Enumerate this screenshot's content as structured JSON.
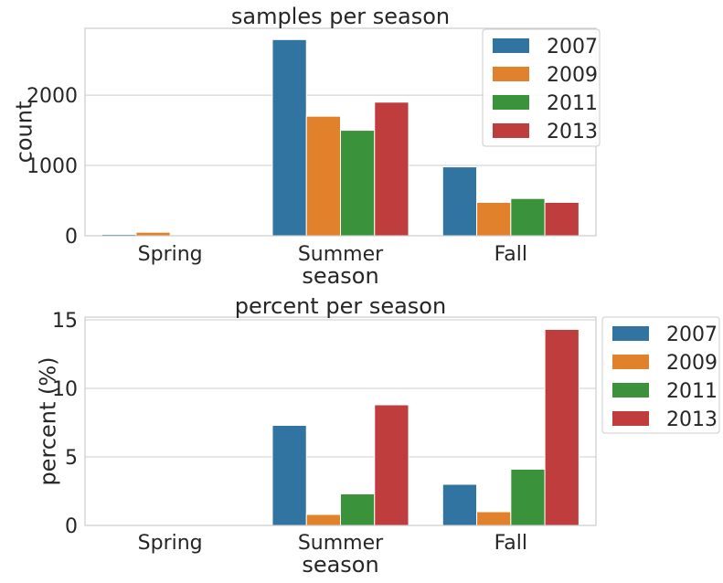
{
  "colors": {
    "2007": "#3274a1",
    "2009": "#e1812c",
    "2011": "#3a923a",
    "2013": "#c03d3e"
  },
  "chart_data": [
    {
      "type": "bar",
      "title": "samples per season",
      "xlabel": "season",
      "ylabel": "count",
      "categories": [
        "Spring",
        "Summer",
        "Fall"
      ],
      "ylim": [
        0,
        2950
      ],
      "yticks": [
        0,
        1000,
        2000
      ],
      "ytick_labels": [
        "0",
        "1000",
        "2000"
      ],
      "grid": true,
      "legend_position": "upper-right-inside",
      "series": [
        {
          "name": "2007",
          "values": [
            20,
            2790,
            980
          ]
        },
        {
          "name": "2009",
          "values": [
            50,
            1700,
            475
          ]
        },
        {
          "name": "2011",
          "values": [
            0,
            1500,
            530
          ]
        },
        {
          "name": "2013",
          "values": [
            0,
            1900,
            475
          ]
        }
      ]
    },
    {
      "type": "bar",
      "title": "percent per season",
      "xlabel": "season",
      "ylabel": "percent (%)",
      "categories": [
        "Spring",
        "Summer",
        "Fall"
      ],
      "ylim": [
        0,
        15.2
      ],
      "yticks": [
        0,
        5,
        10,
        15
      ],
      "ytick_labels": [
        "0",
        "5",
        "10",
        "15"
      ],
      "grid": true,
      "legend_position": "outside-right-top",
      "series": [
        {
          "name": "2007",
          "values": [
            0,
            7.3,
            3.0
          ]
        },
        {
          "name": "2009",
          "values": [
            0,
            0.8,
            1.0
          ]
        },
        {
          "name": "2011",
          "values": [
            0,
            2.3,
            4.1
          ]
        },
        {
          "name": "2013",
          "values": [
            0,
            8.8,
            14.3
          ]
        }
      ]
    }
  ]
}
